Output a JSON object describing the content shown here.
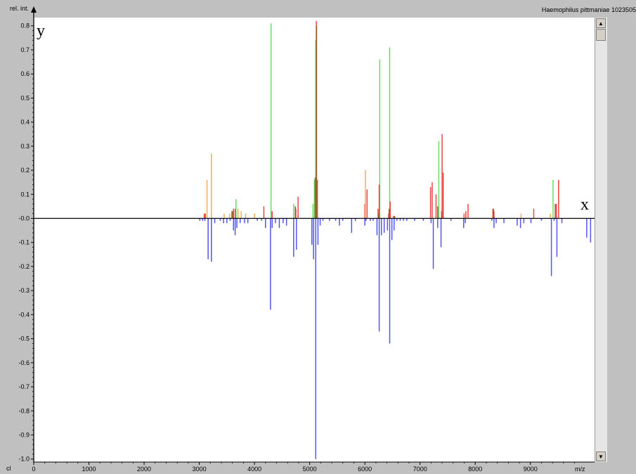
{
  "window": {
    "title": "Haemophilus pittmaniae 1023505",
    "corner_label": "cl"
  },
  "scrollbar": {
    "up_icon": "▲",
    "down_icon": "▼"
  },
  "chart_data": {
    "type": "bar",
    "ylabel": "rel. int.",
    "xlabel": "m/z",
    "xlim": [
      0,
      10000
    ],
    "ylim": [
      -1.0,
      0.82
    ],
    "axis_letters": {
      "x": "x",
      "y": "y"
    },
    "xticks": [
      0,
      1000,
      2000,
      3000,
      4000,
      5000,
      6000,
      7000,
      8000,
      9000
    ],
    "xtick_labels": [
      "0",
      "1000",
      "2000",
      "3000",
      "4000",
      "5000",
      "6000",
      "7000",
      "8000",
      "9000"
    ],
    "yticks": [
      0.8,
      0.7,
      0.6,
      0.5,
      0.4,
      0.3,
      0.2,
      0.1,
      0.0,
      -0.1,
      -0.2,
      -0.3,
      -0.4,
      -0.5,
      -0.6,
      -0.7,
      -0.8,
      -0.9,
      -1.0
    ],
    "ytick_labels": [
      "0.8",
      "0.7",
      "0.6",
      "0.5",
      "0.4",
      "0.3",
      "0.2",
      "0.1",
      "-0.0",
      "-0.1",
      "-0.2",
      "-0.3",
      "-0.4",
      "-0.5",
      "-0.6",
      "-0.7",
      "-0.8",
      "-0.9",
      "-1.0"
    ],
    "grid": false,
    "colors": {
      "green": "#66dd66",
      "red": "#ee4444",
      "orange": "#f0b050",
      "olive": "#886622",
      "blue": "#5555ee",
      "axis": "#000000"
    },
    "series": [
      {
        "color_key": "green",
        "x": [
          3665,
          4300,
          4710,
          5060,
          5085,
          5110,
          6270,
          6450,
          7340,
          9410
        ],
        "values": [
          0.08,
          0.81,
          0.06,
          0.06,
          0.16,
          0.74,
          0.66,
          0.71,
          0.32,
          0.16
        ]
      },
      {
        "color_key": "red",
        "x": [
          3090,
          3110,
          3590,
          3620,
          3650,
          4170,
          4320,
          4750,
          4790,
          5120,
          5140,
          6000,
          6040,
          6240,
          6260,
          6430,
          6460,
          6520,
          7190,
          7220,
          7290,
          7400,
          7420,
          7800,
          7830,
          7870,
          8320,
          8340,
          9060,
          9470,
          9510
        ],
        "values": [
          0.02,
          0.02,
          0.03,
          0.04,
          0.04,
          0.05,
          0.03,
          0.04,
          0.09,
          0.82,
          0.16,
          0.06,
          0.12,
          0.04,
          0.14,
          0.02,
          0.07,
          0.01,
          0.13,
          0.15,
          0.1,
          0.35,
          0.19,
          0.02,
          0.03,
          0.06,
          0.04,
          0.03,
          0.04,
          0.06,
          0.16
        ]
      },
      {
        "color_key": "orange",
        "x": [
          3140,
          3220,
          3450,
          3550,
          3700,
          3760,
          3840,
          4000,
          6010,
          7790,
          8830,
          9360
        ],
        "values": [
          0.16,
          0.27,
          0.02,
          0.02,
          0.04,
          0.03,
          0.02,
          0.02,
          0.2,
          0.02,
          0.02,
          0.02
        ]
      },
      {
        "color_key": "olive",
        "x": [
          3600,
          4740,
          5100,
          5125,
          6250,
          6440,
          6540,
          7320,
          7390,
          8330,
          9450
        ],
        "values": [
          0.03,
          0.05,
          0.17,
          0.8,
          0.02,
          0.04,
          0.01,
          0.05,
          0.03,
          0.04,
          0.06
        ]
      },
      {
        "color_key": "blue",
        "x": [
          3010,
          3060,
          3100,
          3160,
          3220,
          3280,
          3380,
          3440,
          3500,
          3560,
          3620,
          3650,
          3680,
          3740,
          3820,
          3880,
          4050,
          4130,
          4200,
          4290,
          4320,
          4380,
          4450,
          4520,
          4580,
          4710,
          4760,
          5040,
          5070,
          5110,
          5150,
          5190,
          5240,
          5360,
          5470,
          5540,
          5600,
          5760,
          5830,
          6000,
          6020,
          6100,
          6150,
          6220,
          6260,
          6300,
          6350,
          6410,
          6450,
          6490,
          6530,
          6580,
          6640,
          6700,
          6760,
          6900,
          7060,
          7200,
          7240,
          7320,
          7380,
          7560,
          7790,
          7820,
          8300,
          8340,
          8380,
          8520,
          8760,
          8820,
          8880,
          9010,
          9200,
          9380,
          9430,
          9480,
          9570,
          10020,
          10090
        ],
        "values": [
          -0.01,
          -0.01,
          -0.01,
          -0.17,
          -0.18,
          -0.02,
          -0.01,
          -0.02,
          -0.02,
          -0.01,
          -0.05,
          -0.07,
          -0.04,
          -0.02,
          -0.02,
          -0.02,
          -0.01,
          -0.01,
          -0.04,
          -0.38,
          -0.04,
          -0.02,
          -0.04,
          -0.02,
          -0.03,
          -0.16,
          -0.13,
          -0.11,
          -0.17,
          -1.0,
          -0.11,
          -0.03,
          -0.01,
          -0.01,
          -0.01,
          -0.03,
          -0.01,
          -0.06,
          -0.01,
          -0.03,
          -0.01,
          -0.01,
          -0.01,
          -0.07,
          -0.47,
          -0.07,
          -0.06,
          -0.05,
          -0.52,
          -0.09,
          -0.05,
          -0.01,
          -0.01,
          -0.01,
          -0.01,
          -0.01,
          -0.01,
          -0.02,
          -0.21,
          -0.04,
          -0.12,
          -0.01,
          -0.04,
          -0.02,
          -0.01,
          -0.04,
          -0.02,
          -0.02,
          -0.03,
          -0.04,
          -0.02,
          -0.02,
          -0.01,
          -0.24,
          -0.01,
          -0.16,
          -0.02,
          -0.08,
          -0.1
        ]
      }
    ]
  }
}
